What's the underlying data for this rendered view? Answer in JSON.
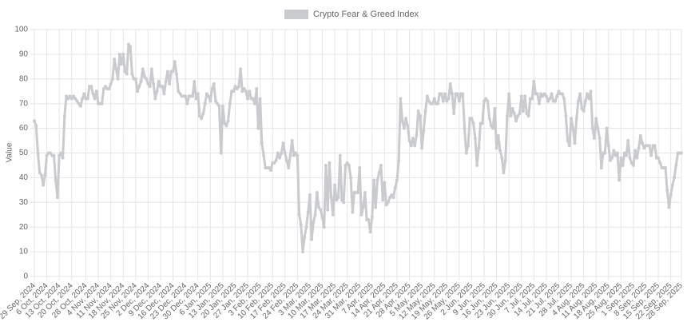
{
  "chart_data": {
    "type": "line",
    "y_label": "Value",
    "ylim": [
      0,
      100
    ],
    "yticks": [
      0,
      10,
      20,
      30,
      40,
      50,
      60,
      70,
      80,
      90,
      100
    ],
    "grid": true,
    "legend": "top",
    "categories": [
      "29 Sep, 2024",
      null,
      null,
      null,
      null,
      null,
      null,
      "6 Oct, 2024",
      null,
      null,
      null,
      null,
      null,
      null,
      "13 Oct, 2024",
      null,
      null,
      null,
      null,
      null,
      null,
      "20 Oct, 2024",
      null,
      null,
      null,
      null,
      null,
      null,
      null,
      "28 Oct, 2024",
      null,
      null,
      null,
      null,
      null,
      null,
      "4 Nov, 2024",
      null,
      null,
      null,
      null,
      null,
      null,
      "11 Nov, 2024",
      null,
      null,
      null,
      null,
      null,
      null,
      "18 Nov, 2024",
      null,
      null,
      null,
      null,
      null,
      null,
      "25 Nov, 2024",
      null,
      null,
      null,
      null,
      null,
      null,
      "2 Dec, 2024",
      null,
      null,
      null,
      null,
      null,
      null,
      "9 Dec, 2024",
      null,
      null,
      null,
      null,
      null,
      null,
      "16 Dec, 2024",
      null,
      null,
      null,
      null,
      null,
      null,
      "23 Dec, 2024",
      null,
      null,
      null,
      null,
      null,
      null,
      "30 Dec, 2024",
      null,
      null,
      null,
      null,
      null,
      null,
      "6 Jan, 2025",
      null,
      null,
      null,
      null,
      null,
      null,
      "13 Jan, 2025",
      null,
      null,
      null,
      null,
      null,
      null,
      "20 Jan, 2025",
      null,
      null,
      null,
      null,
      null,
      null,
      "27 Jan, 2025",
      null,
      null,
      null,
      null,
      null,
      null,
      "3 Feb, 2025",
      null,
      null,
      null,
      null,
      null,
      null,
      "10 Feb, 2025",
      null,
      null,
      null,
      null,
      null,
      null,
      "17 Feb, 2025",
      null,
      null,
      null,
      null,
      null,
      null,
      "24 Feb, 2025",
      null,
      null,
      null,
      null,
      null,
      null,
      "3 Mar, 2025",
      null,
      null,
      null,
      null,
      null,
      null,
      "10 Mar, 2025",
      null,
      null,
      null,
      null,
      null,
      null,
      "17 Mar, 2025",
      null,
      null,
      null,
      null,
      null,
      null,
      "24 Mar, 2025",
      null,
      null,
      null,
      null,
      null,
      null,
      "31 Mar, 2025",
      null,
      null,
      null,
      null,
      null,
      null,
      "7 Apr, 2025",
      null,
      null,
      null,
      null,
      null,
      null,
      "14 Apr, 2025",
      null,
      null,
      null,
      null,
      null,
      null,
      "21 Apr, 2025",
      null,
      null,
      null,
      null,
      null,
      null,
      "28 Apr, 2025",
      null,
      null,
      null,
      null,
      null,
      null,
      "5 May, 2025",
      null,
      null,
      null,
      null,
      null,
      null,
      "12 May, 2025",
      null,
      null,
      null,
      null,
      null,
      null,
      "19 May, 2025",
      null,
      null,
      null,
      null,
      null,
      null,
      "26 May, 2025",
      null,
      null,
      null,
      null,
      null,
      null,
      "2 Jun, 2025",
      null,
      null,
      null,
      null,
      null,
      null,
      "9 Jun, 2025",
      null,
      null,
      null,
      null,
      null,
      null,
      "16 Jun, 2025",
      null,
      null,
      null,
      null,
      null,
      null,
      "23 Jun, 2025",
      null,
      null,
      null,
      null,
      null,
      null,
      "30 Jun, 2025",
      null,
      null,
      null,
      null,
      null,
      null,
      "7 Jul, 2025",
      null,
      null,
      null,
      null,
      null,
      null,
      "14 Jul, 2025",
      null,
      null,
      null,
      null,
      null,
      null,
      "21 Jul, 2025",
      null,
      null,
      null,
      null,
      null,
      null,
      "28 Jul, 2025",
      null,
      null,
      null,
      null,
      null,
      null,
      "4 Aug, 2025",
      null,
      null,
      null,
      null,
      null,
      null,
      "11 Aug, 2025",
      null,
      null,
      null,
      null,
      null,
      null,
      "18 Aug, 2025",
      null,
      null,
      null,
      null,
      null,
      null,
      "25 Aug, 2025",
      null,
      null,
      null,
      null,
      null,
      null,
      "1 Sep, 2025",
      null,
      null,
      null,
      null,
      null,
      null,
      "8 Sep, 2025",
      null,
      null,
      null,
      null,
      null,
      null,
      "15 Sep, 2025",
      null,
      null,
      null,
      null,
      null,
      null,
      "22 Sep, 2025",
      null,
      null,
      null,
      null,
      null,
      "28 Sep, 2025"
    ],
    "series": [
      {
        "name": "Crypto Fear & Greed Index",
        "color": "#c9cbcf",
        "values": [
          63,
          61,
          50,
          42,
          41,
          37,
          41,
          49,
          50,
          50,
          49,
          49,
          39,
          32,
          49,
          50,
          48,
          65,
          73,
          72,
          73,
          72,
          73,
          72,
          71,
          70,
          69,
          72,
          74,
          72,
          72,
          77,
          77,
          74,
          72,
          75,
          70,
          70,
          70,
          76,
          77,
          76,
          76,
          78,
          80,
          88,
          84,
          80,
          90,
          86,
          90,
          83,
          82,
          94,
          93,
          82,
          80,
          80,
          75,
          77,
          79,
          84,
          81,
          80,
          78,
          77,
          84,
          78,
          72,
          75,
          79,
          77,
          77,
          74,
          79,
          83,
          78,
          83,
          83,
          87,
          82,
          75,
          74,
          73,
          73,
          73,
          70,
          73,
          73,
          73,
          79,
          72,
          74,
          65,
          64,
          66,
          70,
          74,
          73,
          71,
          76,
          78,
          71,
          70,
          69,
          50,
          69,
          62,
          61,
          63,
          70,
          75,
          75,
          77,
          76,
          77,
          84,
          75,
          76,
          75,
          72,
          75,
          72,
          72,
          70,
          76,
          60,
          72,
          54,
          49,
          44,
          44,
          44,
          43,
          46,
          46,
          47,
          50,
          48,
          50,
          54,
          50,
          47,
          44,
          49,
          55,
          49,
          50,
          49,
          25,
          21,
          10,
          16,
          20,
          26,
          33,
          15,
          22,
          25,
          34,
          28,
          27,
          24,
          20,
          45,
          27,
          46,
          32,
          25,
          37,
          31,
          32,
          49,
          31,
          30,
          45,
          46,
          45,
          40,
          26,
          34,
          34,
          34,
          44,
          25,
          28,
          34,
          23,
          23,
          18,
          24,
          39,
          28,
          39,
          42,
          45,
          31,
          38,
          29,
          30,
          32,
          33,
          32,
          36,
          39,
          47,
          72,
          63,
          60,
          64,
          61,
          55,
          53,
          56,
          53,
          57,
          67,
          65,
          52,
          59,
          67,
          73,
          71,
          70,
          70,
          72,
          70,
          70,
          74,
          74,
          71,
          74,
          71,
          72,
          78,
          74,
          66,
          74,
          74,
          71,
          74,
          74,
          60,
          50,
          53,
          64,
          64,
          62,
          56,
          45,
          52,
          62,
          62,
          71,
          72,
          71,
          64,
          61,
          60,
          68,
          52,
          57,
          51,
          48,
          42,
          47,
          65,
          74,
          65,
          68,
          66,
          63,
          65,
          66,
          73,
          67,
          73,
          66,
          65,
          72,
          72,
          79,
          74,
          74,
          70,
          74,
          73,
          74,
          73,
          71,
          72,
          74,
          71,
          71,
          73,
          75,
          74,
          74,
          72,
          65,
          55,
          53,
          64,
          60,
          54,
          64,
          71,
          74,
          68,
          67,
          71,
          74,
          72,
          75,
          60,
          56,
          64,
          60,
          56,
          44,
          50,
          50,
          60,
          53,
          47,
          48,
          51,
          49,
          50,
          39,
          48,
          45,
          50,
          49,
          55,
          48,
          46,
          45,
          51,
          48,
          52,
          57,
          54,
          52,
          53,
          53,
          53,
          49,
          53,
          53,
          48,
          48,
          46,
          44,
          44,
          44,
          35,
          28,
          33,
          37,
          40,
          45,
          50,
          50,
          50
        ]
      }
    ]
  }
}
